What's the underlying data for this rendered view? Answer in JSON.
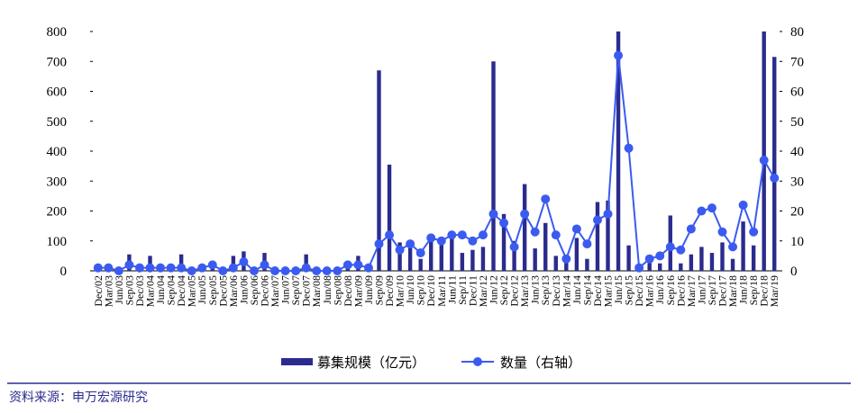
{
  "chart_data": {
    "type": "bar_line",
    "categories": [
      "Dec/02",
      "Mar/03",
      "Jun/03",
      "Sep/03",
      "Dec/03",
      "Mar/04",
      "Jun/04",
      "Sep/04",
      "Dec/04",
      "Mar/05",
      "Jun/05",
      "Sep/05",
      "Dec/05",
      "Mar/06",
      "Jun/06",
      "Sep/06",
      "Dec/06",
      "Mar/07",
      "Jun/07",
      "Sep/07",
      "Dec/07",
      "Mar/08",
      "Jun/08",
      "Sep/08",
      "Dec/08",
      "Mar/09",
      "Jun/09",
      "Sep/09",
      "Dec/09",
      "Mar/10",
      "Jun/10",
      "Sep/10",
      "Dec/10",
      "Mar/11",
      "Jun/11",
      "Sep/11",
      "Dec/11",
      "Mar/12",
      "Jun/12",
      "Sep/12",
      "Dec/12",
      "Mar/13",
      "Jun/13",
      "Sep/13",
      "Dec/13",
      "Mar/14",
      "Jun/14",
      "Sep/14",
      "Dec/14",
      "Mar/15",
      "Jun/15",
      "Sep/15",
      "Dec/15",
      "Mar/16",
      "Jun/16",
      "Sep/16",
      "Dec/16",
      "Mar/17",
      "Jun/17",
      "Sep/17",
      "Dec/17",
      "Mar/18",
      "Jun/18",
      "Sep/18",
      "Dec/18",
      "Mar/19"
    ],
    "series": [
      {
        "name": "募集规模（亿元）",
        "color": "#2b2b8f",
        "axis": "y",
        "values": [
          10,
          10,
          5,
          55,
          15,
          50,
          10,
          15,
          55,
          5,
          10,
          20,
          5,
          50,
          65,
          5,
          60,
          5,
          5,
          5,
          55,
          5,
          5,
          5,
          20,
          50,
          10,
          670,
          355,
          95,
          90,
          40,
          100,
          110,
          120,
          60,
          70,
          80,
          700,
          190,
          100,
          290,
          75,
          160,
          50,
          30,
          110,
          40,
          230,
          235,
          800,
          85,
          10,
          30,
          25,
          185,
          25,
          55,
          80,
          60,
          95,
          40,
          165,
          85,
          800,
          715
        ]
      },
      {
        "name": "数量（右轴）",
        "color": "#3b5bf0",
        "axis": "y2",
        "values": [
          1,
          1,
          0,
          2,
          1,
          1,
          1,
          1,
          1,
          0,
          1,
          2,
          0,
          1,
          3,
          0,
          2,
          0,
          0,
          0,
          1,
          0,
          0,
          0,
          2,
          2,
          1,
          9,
          12,
          7,
          9,
          6,
          11,
          10,
          12,
          12,
          10,
          12,
          19,
          16,
          8,
          19,
          13,
          24,
          12,
          4,
          14,
          9,
          17,
          19,
          72,
          41,
          1,
          4,
          5,
          8,
          7,
          14,
          20,
          21,
          13,
          8,
          22,
          13,
          37,
          31
        ]
      }
    ],
    "ylim": [
      0,
      800
    ],
    "yticks": [
      0,
      100,
      200,
      300,
      400,
      500,
      600,
      700,
      800
    ],
    "y2lim": [
      0,
      80
    ],
    "y2ticks": [
      0,
      10,
      20,
      30,
      40,
      50,
      60,
      70,
      80
    ],
    "source": "资料来源：申万宏源研究"
  }
}
